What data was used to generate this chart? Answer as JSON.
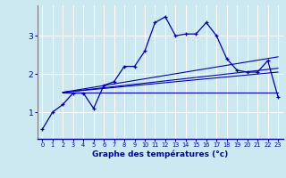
{
  "xlabel": "Graphe des températures (°c)",
  "background_color": "#cce8f0",
  "grid_color": "#ffffff",
  "line_color": "#0000bb",
  "x_ticks": [
    0,
    1,
    2,
    3,
    4,
    5,
    6,
    7,
    8,
    9,
    10,
    11,
    12,
    13,
    14,
    15,
    16,
    17,
    18,
    19,
    20,
    21,
    22,
    23
  ],
  "y_ticks": [
    1,
    2,
    3
  ],
  "xlim": [
    -0.5,
    23.5
  ],
  "ylim": [
    0.3,
    3.8
  ],
  "main_x": [
    0,
    1,
    2,
    3,
    4,
    5,
    6,
    7,
    8,
    9,
    10,
    11,
    12,
    13,
    14,
    15,
    16,
    17,
    18,
    19,
    20,
    21,
    22,
    23
  ],
  "main_y": [
    0.55,
    1.0,
    1.2,
    1.5,
    1.5,
    1.1,
    1.7,
    1.8,
    2.2,
    2.2,
    2.6,
    3.35,
    3.5,
    3.0,
    3.05,
    3.05,
    3.35,
    3.0,
    2.4,
    2.1,
    2.05,
    2.05,
    2.35,
    1.4
  ],
  "trend_lines": [
    {
      "x": [
        2,
        23
      ],
      "y": [
        1.52,
        1.52
      ]
    },
    {
      "x": [
        2,
        23
      ],
      "y": [
        1.52,
        2.05
      ]
    },
    {
      "x": [
        2,
        23
      ],
      "y": [
        1.52,
        2.15
      ]
    },
    {
      "x": [
        2,
        23
      ],
      "y": [
        1.52,
        2.45
      ]
    }
  ]
}
